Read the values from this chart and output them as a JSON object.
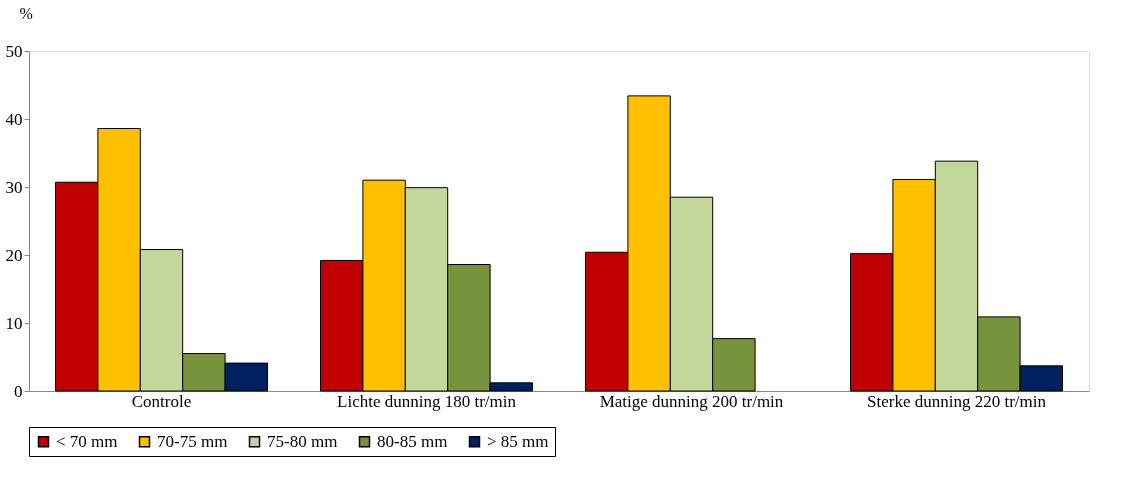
{
  "chart_data": {
    "type": "bar",
    "ylabel": "%",
    "categories": [
      "Controle",
      "Lichte dunning 180 tr/min",
      "Matige dunning 200 tr/min",
      "Sterke dunning 220 tr/min"
    ],
    "series": [
      {
        "name": "< 70 mm",
        "color": "#c00000",
        "values": [
          30.7,
          19.2,
          20.4,
          20.2
        ]
      },
      {
        "name": "70-75 mm",
        "color": "#ffc000",
        "values": [
          38.6,
          31.0,
          43.4,
          31.1
        ]
      },
      {
        "name": "75-80 mm",
        "color": "#c4d79b",
        "values": [
          20.8,
          29.9,
          28.5,
          33.8
        ]
      },
      {
        "name": "80-85 mm",
        "color": "#77933c",
        "values": [
          5.5,
          18.6,
          7.7,
          10.9
        ]
      },
      {
        "name": "> 85 mm",
        "color": "#002060",
        "values": [
          4.1,
          1.2,
          null,
          3.7
        ]
      }
    ],
    "ylim": [
      0,
      50
    ],
    "yticks": [
      0,
      10,
      20,
      30,
      40,
      50
    ],
    "grid": false,
    "legend": "bottom"
  }
}
